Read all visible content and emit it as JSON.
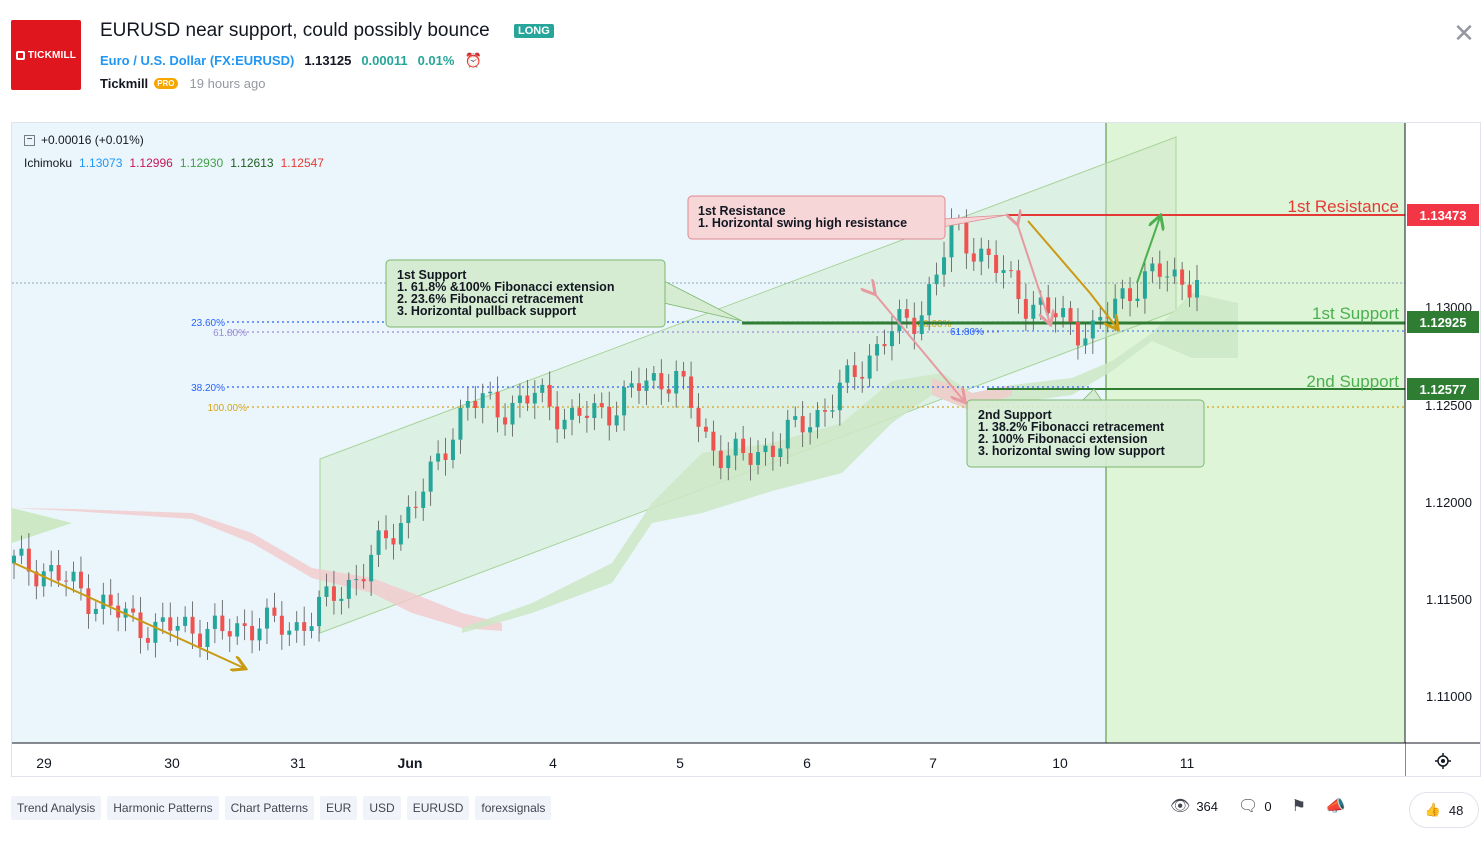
{
  "header": {
    "logo_text": "TICKMILL",
    "title": "EURUSD near support, could possibly bounce",
    "direction_badge": "LONG",
    "symbol_name": "Euro / U.S. Dollar",
    "symbol_ticker": "(FX:EURUSD)",
    "price": "1.13125",
    "change_abs": "0.00011",
    "change_pct": "0.01%",
    "author": "Tickmill",
    "author_badge": "PRO",
    "time_ago": "19 hours ago",
    "colors": {
      "brand": "#e0161f",
      "accent": "#2196f3",
      "positive": "#26a69a"
    }
  },
  "chart": {
    "change_legend": "+0.00016 (+0.01%)",
    "indicator_name": "Ichimoku",
    "indicator_values": [
      {
        "value": "1.13073",
        "color": "#2196f3"
      },
      {
        "value": "1.12996",
        "color": "#c2185b"
      },
      {
        "value": "1.12930",
        "color": "#43a047"
      },
      {
        "value": "1.12613",
        "color": "#1b5e20"
      },
      {
        "value": "1.12547",
        "color": "#e53935"
      }
    ],
    "price_axis": [
      "1.13000",
      "1.12500",
      "1.12000",
      "1.11500",
      "1.11000"
    ],
    "time_axis": [
      "29",
      "30",
      "31",
      "Jun",
      "4",
      "5",
      "6",
      "7",
      "10",
      "11"
    ],
    "price_labels": [
      {
        "text": "1.13473",
        "color": "#f23645"
      },
      {
        "text": "1.12925",
        "color": "#2e7d32"
      },
      {
        "text": "1.12577",
        "color": "#2e7d32"
      }
    ],
    "level_names": {
      "resistance_1": "1st Resistance",
      "support_1": "1st Support",
      "support_2": "2nd Support"
    },
    "fib_labels": {
      "f236": "23.60%",
      "f618a": "61.80%",
      "f382": "38.20%",
      "f100a": "100.00%",
      "f100b": "100.00%",
      "f618b": "61.80%"
    },
    "annotations": {
      "resistance": {
        "title": "1st Resistance",
        "lines": [
          "1. Horizontal swing high resistance"
        ]
      },
      "support1": {
        "title": "1st Support",
        "lines": [
          "1.  61.8% &100% Fibonacci extension",
          "2. 23.6% Fibonacci retracement",
          "3. Horizontal pullback support"
        ]
      },
      "support2": {
        "title": "2nd Support",
        "lines": [
          "1. 38.2% Fibonacci retracement",
          "2. 100% Fibonacci extension",
          "3. horizontal swing low support"
        ]
      }
    },
    "settings_icon": "gear-icon"
  },
  "chart_data": {
    "type": "candlestick",
    "title": "EURUSD near support, could possibly bounce",
    "ylim": [
      1.107,
      1.14
    ],
    "levels": [
      {
        "name": "1st Resistance",
        "value": 1.13473
      },
      {
        "name": "1st Support",
        "value": 1.12925
      },
      {
        "name": "2nd Support",
        "value": 1.12577
      }
    ],
    "close_path": [
      1.1169,
      1.1165,
      1.1154,
      1.1143,
      1.1135,
      1.1137,
      1.1133,
      1.1139,
      1.1135,
      1.1149,
      1.1165,
      1.1188,
      1.1213,
      1.1253,
      1.1248,
      1.1255,
      1.1243,
      1.1247,
      1.126,
      1.1266,
      1.1229,
      1.1222,
      1.1232,
      1.1244,
      1.1262,
      1.1285,
      1.1296,
      1.134,
      1.1325,
      1.1305,
      1.1295,
      1.1287,
      1.131,
      1.1318,
      1.1313
    ]
  },
  "tags": [
    "Trend Analysis",
    "Harmonic Patterns",
    "Chart Patterns",
    "EUR",
    "USD",
    "EURUSD",
    "forexsignals"
  ],
  "stats": {
    "views": "364",
    "comments": "0",
    "likes": "48"
  }
}
